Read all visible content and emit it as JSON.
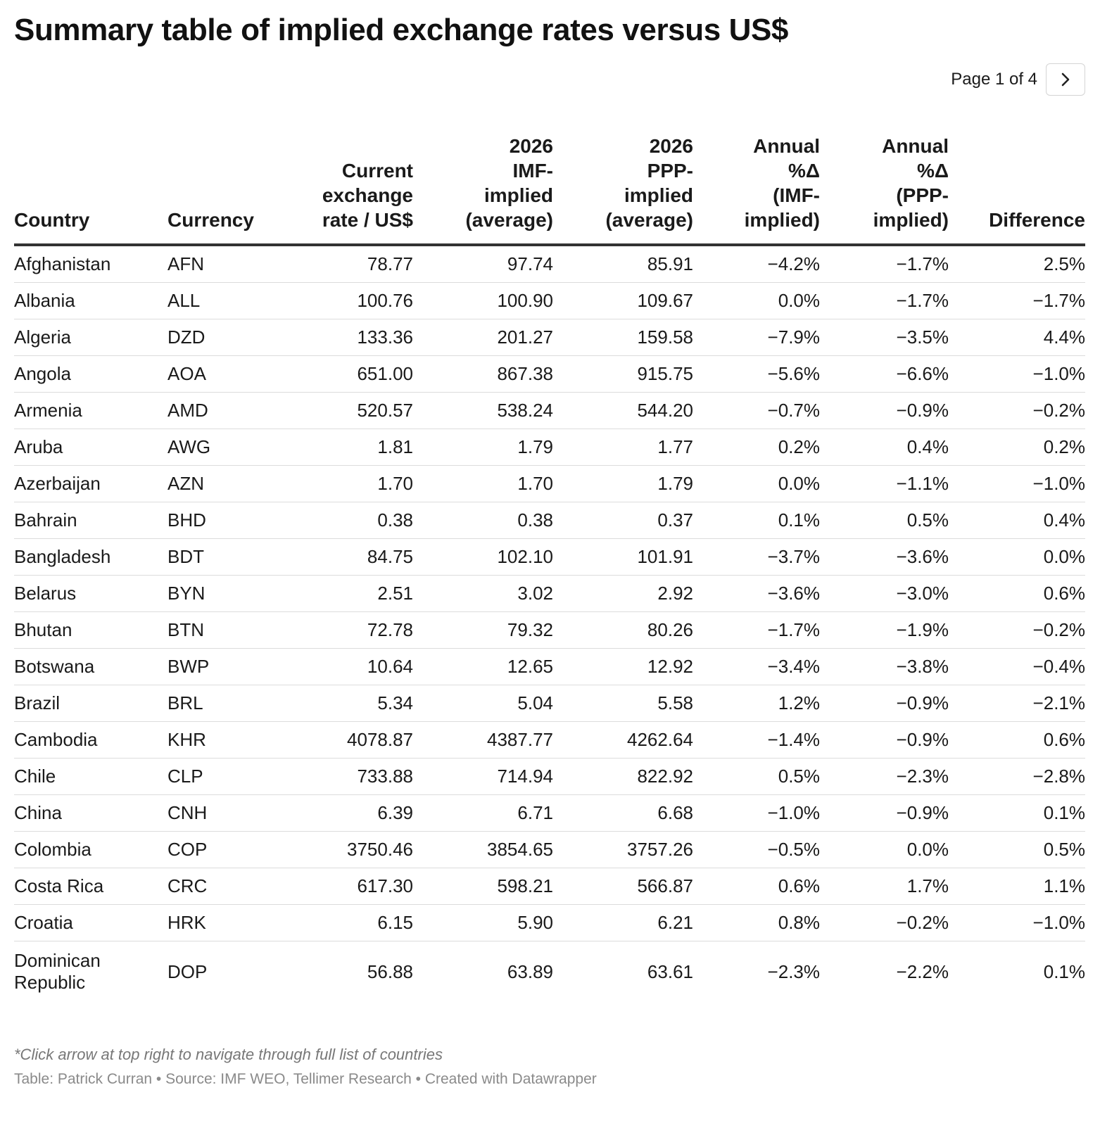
{
  "title": "Summary table of implied exchange rates versus US$",
  "pagination": {
    "label": "Page 1 of 4"
  },
  "icons": {
    "next": "chevron-right-icon"
  },
  "table": {
    "headers": [
      [
        "Country"
      ],
      [
        "Currency"
      ],
      [
        "Current",
        "exchange",
        "rate / US$"
      ],
      [
        "2026",
        "IMF-",
        "implied",
        "(average)"
      ],
      [
        "2026",
        "PPP-",
        "implied",
        "(average)"
      ],
      [
        "Annual",
        "%Δ",
        "(IMF-",
        "implied)"
      ],
      [
        "Annual",
        "%Δ",
        "(PPP-",
        "implied)"
      ],
      [
        "Difference"
      ]
    ],
    "rows": [
      [
        "Afghanistan",
        "AFN",
        "78.77",
        "97.74",
        "85.91",
        "−4.2%",
        "−1.7%",
        "2.5%"
      ],
      [
        "Albania",
        "ALL",
        "100.76",
        "100.90",
        "109.67",
        "0.0%",
        "−1.7%",
        "−1.7%"
      ],
      [
        "Algeria",
        "DZD",
        "133.36",
        "201.27",
        "159.58",
        "−7.9%",
        "−3.5%",
        "4.4%"
      ],
      [
        "Angola",
        "AOA",
        "651.00",
        "867.38",
        "915.75",
        "−5.6%",
        "−6.6%",
        "−1.0%"
      ],
      [
        "Armenia",
        "AMD",
        "520.57",
        "538.24",
        "544.20",
        "−0.7%",
        "−0.9%",
        "−0.2%"
      ],
      [
        "Aruba",
        "AWG",
        "1.81",
        "1.79",
        "1.77",
        "0.2%",
        "0.4%",
        "0.2%"
      ],
      [
        "Azerbaijan",
        "AZN",
        "1.70",
        "1.70",
        "1.79",
        "0.0%",
        "−1.1%",
        "−1.0%"
      ],
      [
        "Bahrain",
        "BHD",
        "0.38",
        "0.38",
        "0.37",
        "0.1%",
        "0.5%",
        "0.4%"
      ],
      [
        "Bangladesh",
        "BDT",
        "84.75",
        "102.10",
        "101.91",
        "−3.7%",
        "−3.6%",
        "0.0%"
      ],
      [
        "Belarus",
        "BYN",
        "2.51",
        "3.02",
        "2.92",
        "−3.6%",
        "−3.0%",
        "0.6%"
      ],
      [
        "Bhutan",
        "BTN",
        "72.78",
        "79.32",
        "80.26",
        "−1.7%",
        "−1.9%",
        "−0.2%"
      ],
      [
        "Botswana",
        "BWP",
        "10.64",
        "12.65",
        "12.92",
        "−3.4%",
        "−3.8%",
        "−0.4%"
      ],
      [
        "Brazil",
        "BRL",
        "5.34",
        "5.04",
        "5.58",
        "1.2%",
        "−0.9%",
        "−2.1%"
      ],
      [
        "Cambodia",
        "KHR",
        "4078.87",
        "4387.77",
        "4262.64",
        "−1.4%",
        "−0.9%",
        "0.6%"
      ],
      [
        "Chile",
        "CLP",
        "733.88",
        "714.94",
        "822.92",
        "0.5%",
        "−2.3%",
        "−2.8%"
      ],
      [
        "China",
        "CNH",
        "6.39",
        "6.71",
        "6.68",
        "−1.0%",
        "−0.9%",
        "0.1%"
      ],
      [
        "Colombia",
        "COP",
        "3750.46",
        "3854.65",
        "3757.26",
        "−0.5%",
        "0.0%",
        "0.5%"
      ],
      [
        "Costa Rica",
        "CRC",
        "617.30",
        "598.21",
        "566.87",
        "0.6%",
        "1.7%",
        "1.1%"
      ],
      [
        "Croatia",
        "HRK",
        "6.15",
        "5.90",
        "6.21",
        "0.8%",
        "−0.2%",
        "−1.0%"
      ],
      [
        "Dominican Republic",
        "DOP",
        "56.88",
        "63.89",
        "63.61",
        "−2.3%",
        "−2.2%",
        "0.1%"
      ]
    ]
  },
  "footer": {
    "note": "*Click arrow at top right to navigate through full list of countries",
    "credit": "Table: Patrick Curran • Source: IMF WEO, Tellimer Research • Created with Datawrapper"
  }
}
